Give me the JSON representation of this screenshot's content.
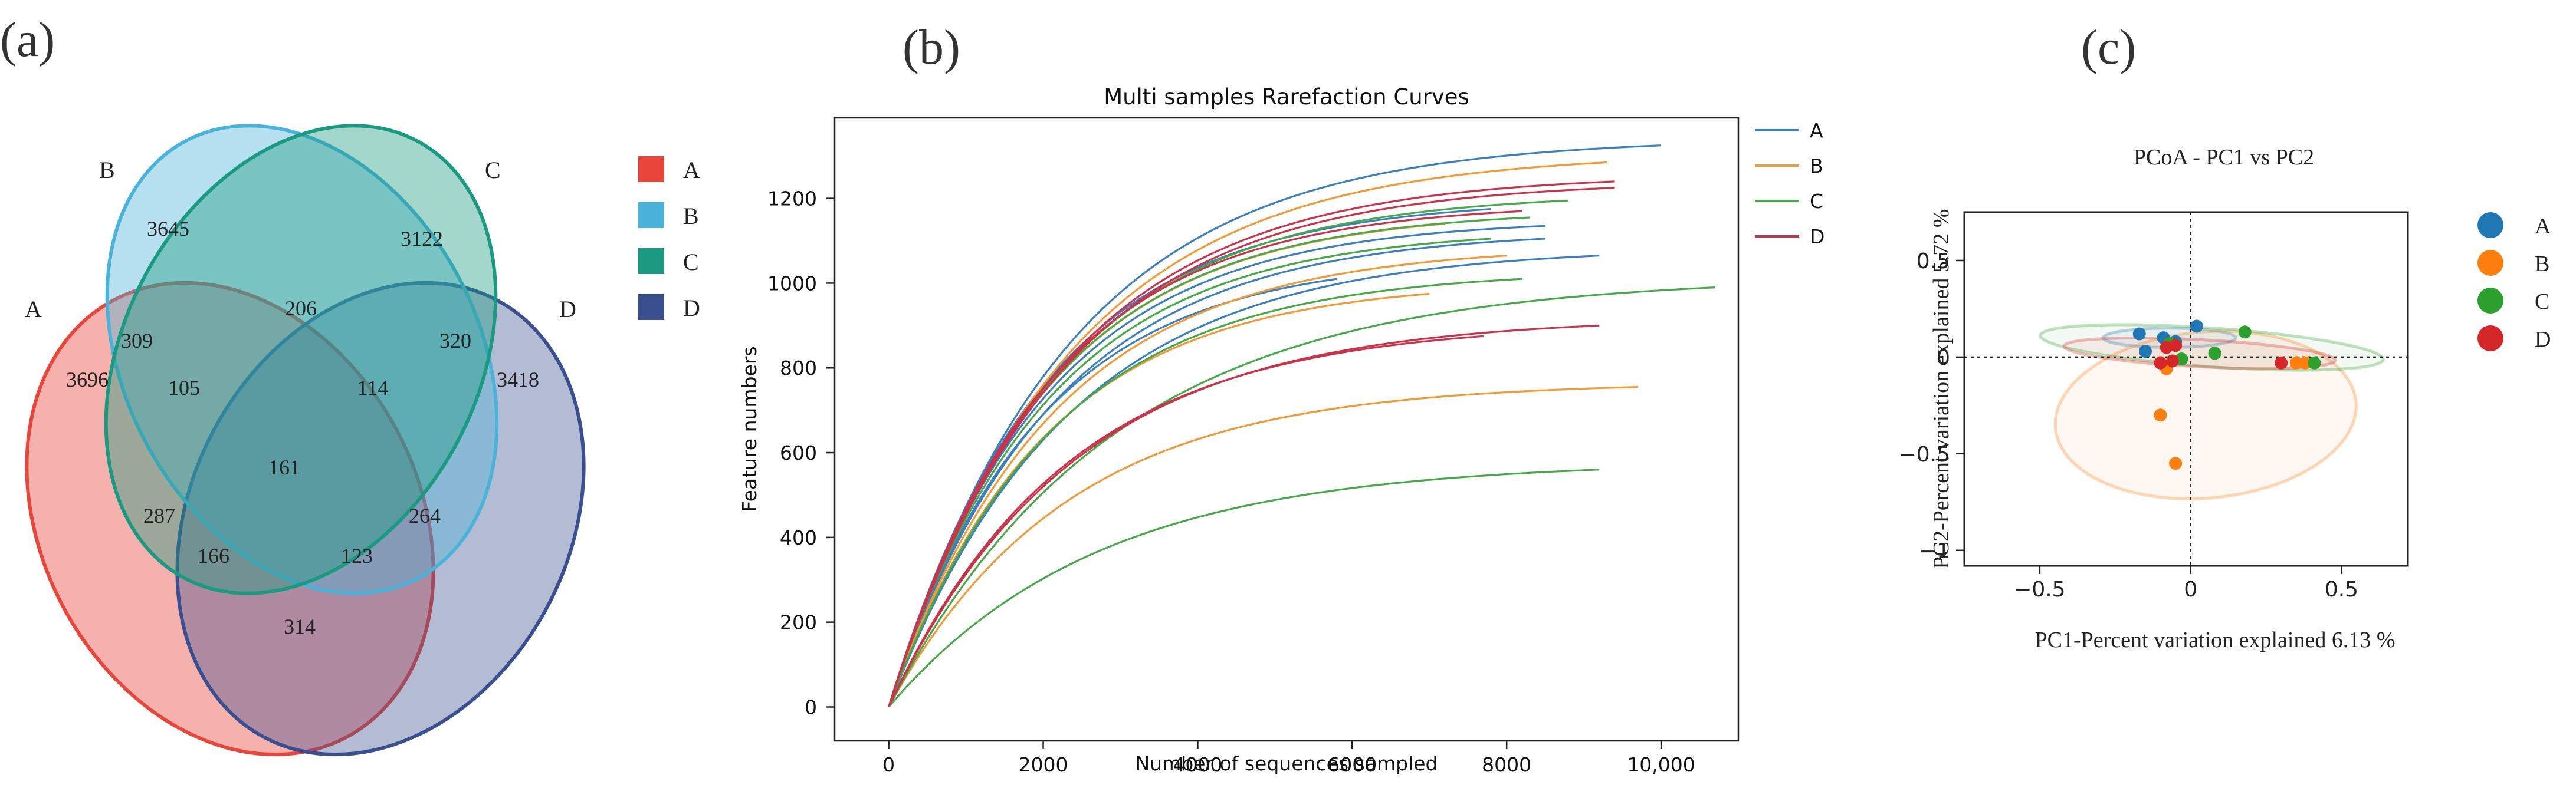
{
  "panel_labels": {
    "a": "(a)",
    "b": "(b)",
    "c": "(c)"
  },
  "chart_data": [
    {
      "type": "venn",
      "sets": [
        "A",
        "B",
        "C",
        "D"
      ],
      "colors": {
        "A": "#e8463a",
        "B": "#4ab3d9",
        "C": "#1a9a80",
        "D": "#3a4f8f"
      },
      "set_labels": {
        "A": "A",
        "B": "B",
        "C": "C",
        "D": "D"
      },
      "legend": [
        {
          "label": "A",
          "color": "#e8463a"
        },
        {
          "label": "B",
          "color": "#4ab3d9"
        },
        {
          "label": "C",
          "color": "#1a9a80"
        },
        {
          "label": "D",
          "color": "#3a4f8f"
        }
      ],
      "regions": [
        {
          "sets": "B",
          "value": "3645"
        },
        {
          "sets": "C",
          "value": "3122"
        },
        {
          "sets": "BC",
          "value": "206"
        },
        {
          "sets": "AB",
          "value": "309"
        },
        {
          "sets": "CD",
          "value": "320"
        },
        {
          "sets": "A",
          "value": "3696"
        },
        {
          "sets": "ABC",
          "value": "105"
        },
        {
          "sets": "BCD",
          "value": "114"
        },
        {
          "sets": "D",
          "value": "3418"
        },
        {
          "sets": "ABCD",
          "value": "161"
        },
        {
          "sets": "AC",
          "value": "287"
        },
        {
          "sets": "BD",
          "value": "264"
        },
        {
          "sets": "ACD",
          "value": "166"
        },
        {
          "sets": "ABD",
          "value": "123"
        },
        {
          "sets": "AD",
          "value": "314"
        }
      ]
    },
    {
      "type": "line",
      "title": "Multi samples Rarefaction Curves",
      "xlabel": "Number of sequences sampled",
      "ylabel": "Feature numbers",
      "xlim": [
        -700,
        11000
      ],
      "ylim": [
        -80,
        1390
      ],
      "xticks": [
        0,
        2000,
        4000,
        6000,
        8000,
        10000
      ],
      "xtick_labels": [
        "0",
        "2000",
        "4000",
        "6000",
        "8000",
        "10,000"
      ],
      "yticks": [
        0,
        200,
        400,
        600,
        800,
        1000,
        1200
      ],
      "ytick_labels": [
        "0",
        "200",
        "400",
        "600",
        "800",
        "1000",
        "1200"
      ],
      "legend": [
        {
          "label": "A",
          "color": "#3c7fbf"
        },
        {
          "label": "B",
          "color": "#f09a38"
        },
        {
          "label": "C",
          "color": "#49a94a"
        },
        {
          "label": "D",
          "color": "#c8344a"
        }
      ],
      "curve_model": "y = ymax * (1 - exp(-x / k))",
      "series": [
        {
          "group": "A",
          "x_end": 10000,
          "y_end": 1325,
          "k": 2300
        },
        {
          "group": "A",
          "x_end": 8500,
          "y_end": 1135,
          "k": 2000
        },
        {
          "group": "A",
          "x_end": 8500,
          "y_end": 1105,
          "k": 2100
        },
        {
          "group": "A",
          "x_end": 9200,
          "y_end": 1065,
          "k": 2300
        },
        {
          "group": "A",
          "x_end": 7800,
          "y_end": 1175,
          "k": 2000
        },
        {
          "group": "A",
          "x_end": 5800,
          "y_end": 1010,
          "k": 1900
        },
        {
          "group": "B",
          "x_end": 9300,
          "y_end": 1285,
          "k": 2300
        },
        {
          "group": "B",
          "x_end": 8000,
          "y_end": 1065,
          "k": 2100
        },
        {
          "group": "B",
          "x_end": 7000,
          "y_end": 975,
          "k": 2000
        },
        {
          "group": "B",
          "x_end": 9700,
          "y_end": 755,
          "k": 2300
        },
        {
          "group": "B",
          "x_end": 7200,
          "y_end": 1140,
          "k": 2000
        },
        {
          "group": "C",
          "x_end": 8800,
          "y_end": 1195,
          "k": 2100
        },
        {
          "group": "C",
          "x_end": 8300,
          "y_end": 1155,
          "k": 2000
        },
        {
          "group": "C",
          "x_end": 7800,
          "y_end": 1105,
          "k": 2000
        },
        {
          "group": "C",
          "x_end": 8200,
          "y_end": 1010,
          "k": 2100
        },
        {
          "group": "C",
          "x_end": 10700,
          "y_end": 990,
          "k": 2900
        },
        {
          "group": "C",
          "x_end": 9200,
          "y_end": 560,
          "k": 2700
        },
        {
          "group": "D",
          "x_end": 9400,
          "y_end": 1240,
          "k": 2200
        },
        {
          "group": "D",
          "x_end": 9400,
          "y_end": 1225,
          "k": 2200
        },
        {
          "group": "D",
          "x_end": 8200,
          "y_end": 1170,
          "k": 2000
        },
        {
          "group": "D",
          "x_end": 9200,
          "y_end": 900,
          "k": 2400
        },
        {
          "group": "D",
          "x_end": 7700,
          "y_end": 875,
          "k": 2300
        }
      ]
    },
    {
      "type": "scatter",
      "title": "PCoA - PC1 vs PC2",
      "xlabel": "PC1-Percent variation explained 6.13 %",
      "ylabel": "PC2-Percent variation explained 5.72 %",
      "xlim": [
        -0.75,
        0.72
      ],
      "ylim": [
        -1.08,
        0.75
      ],
      "xticks": [
        -0.5,
        0,
        0.5
      ],
      "xtick_labels": [
        "−0.5",
        "0",
        "0.5"
      ],
      "yticks": [
        0.5,
        0,
        -0.5,
        -1
      ],
      "ytick_labels": [
        "0.5",
        "0",
        "−0.5",
        "−1"
      ],
      "legend": [
        {
          "label": "A",
          "color": "#1f77b4"
        },
        {
          "label": "B",
          "color": "#ff7f0e"
        },
        {
          "label": "C",
          "color": "#2ca02c"
        },
        {
          "label": "D",
          "color": "#d62728"
        }
      ],
      "points": [
        {
          "group": "A",
          "x": -0.17,
          "y": 0.12
        },
        {
          "group": "A",
          "x": -0.15,
          "y": 0.03
        },
        {
          "group": "A",
          "x": -0.09,
          "y": 0.1
        },
        {
          "group": "A",
          "x": -0.05,
          "y": 0.08
        },
        {
          "group": "A",
          "x": 0.02,
          "y": 0.16
        },
        {
          "group": "B",
          "x": -0.1,
          "y": -0.3
        },
        {
          "group": "B",
          "x": -0.05,
          "y": -0.55
        },
        {
          "group": "B",
          "x": -0.08,
          "y": -0.06
        },
        {
          "group": "B",
          "x": 0.35,
          "y": -0.03
        },
        {
          "group": "B",
          "x": 0.38,
          "y": -0.03
        },
        {
          "group": "C",
          "x": -0.07,
          "y": 0.07
        },
        {
          "group": "C",
          "x": -0.03,
          "y": -0.01
        },
        {
          "group": "C",
          "x": 0.08,
          "y": 0.02
        },
        {
          "group": "C",
          "x": 0.18,
          "y": 0.13
        },
        {
          "group": "C",
          "x": 0.41,
          "y": -0.03
        },
        {
          "group": "D",
          "x": -0.1,
          "y": -0.03
        },
        {
          "group": "D",
          "x": -0.06,
          "y": -0.02
        },
        {
          "group": "D",
          "x": -0.08,
          "y": 0.05
        },
        {
          "group": "D",
          "x": -0.05,
          "y": 0.06
        },
        {
          "group": "D",
          "x": 0.3,
          "y": -0.03
        }
      ],
      "ellipses": [
        {
          "group": "A",
          "cx": -0.07,
          "cy": 0.1,
          "rx": 0.22,
          "ry": 0.05,
          "angle_deg": 0
        },
        {
          "group": "B",
          "cx": 0.05,
          "cy": -0.3,
          "rx": 0.5,
          "ry": 0.43,
          "angle_deg": 5
        },
        {
          "group": "C",
          "cx": 0.07,
          "cy": 0.05,
          "rx": 0.57,
          "ry": 0.1,
          "angle_deg": -4
        },
        {
          "group": "D",
          "cx": 0.03,
          "cy": 0.02,
          "rx": 0.45,
          "ry": 0.07,
          "angle_deg": -3
        }
      ]
    }
  ]
}
